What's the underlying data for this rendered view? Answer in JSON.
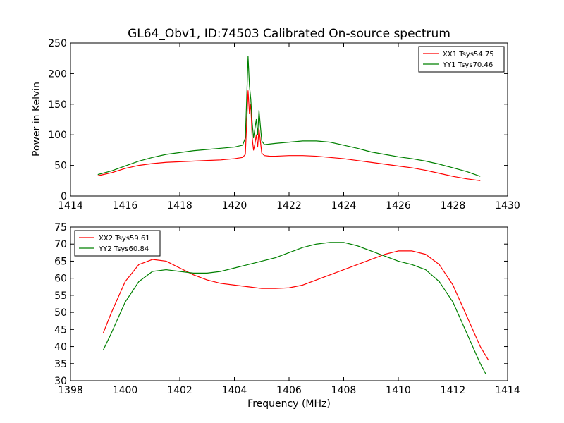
{
  "chart_data": [
    {
      "type": "line",
      "title": "GL64_Obv1, ID:74503 Calibrated On-source spectrum",
      "xlabel": "",
      "ylabel": "Power in Kelvin",
      "xlim": [
        1414,
        1430
      ],
      "ylim": [
        0,
        250
      ],
      "xticks": [
        "1414",
        "1416",
        "1418",
        "1420",
        "1422",
        "1424",
        "1426",
        "1428",
        "1430"
      ],
      "yticks": [
        "0",
        "50",
        "100",
        "150",
        "200",
        "250"
      ],
      "legend_position": "top-right",
      "grid": false,
      "series": [
        {
          "name": "XX1 Tsys54.75",
          "color": "#ff0000",
          "x": [
            1415,
            1415.5,
            1416,
            1416.5,
            1417,
            1417.5,
            1418,
            1418.5,
            1419,
            1419.5,
            1420,
            1420.3,
            1420.4,
            1420.45,
            1420.5,
            1420.55,
            1420.6,
            1420.65,
            1420.7,
            1420.75,
            1420.8,
            1420.85,
            1420.9,
            1420.95,
            1421,
            1421.1,
            1421.3,
            1421.5,
            1422,
            1422.5,
            1423,
            1423.5,
            1424,
            1424.5,
            1425,
            1425.5,
            1426,
            1426.5,
            1427,
            1427.5,
            1428,
            1428.5,
            1429
          ],
          "y": [
            33,
            38,
            45,
            50,
            53,
            55,
            56,
            57,
            58,
            59,
            61,
            63,
            68,
            120,
            172,
            135,
            150,
            95,
            75,
            85,
            100,
            80,
            110,
            90,
            70,
            66,
            65,
            65,
            66,
            66,
            65,
            63,
            61,
            58,
            55,
            52,
            49,
            46,
            42,
            37,
            32,
            28,
            25
          ]
        },
        {
          "name": "YY1 Tsys70.46",
          "color": "#008000",
          "x": [
            1415,
            1415.5,
            1416,
            1416.5,
            1417,
            1417.5,
            1418,
            1418.5,
            1419,
            1419.5,
            1420,
            1420.3,
            1420.4,
            1420.45,
            1420.5,
            1420.55,
            1420.6,
            1420.65,
            1420.7,
            1420.75,
            1420.8,
            1420.85,
            1420.9,
            1420.95,
            1421,
            1421.1,
            1421.3,
            1421.5,
            1422,
            1422.5,
            1423,
            1423.5,
            1424,
            1424.5,
            1425,
            1425.5,
            1426,
            1426.5,
            1427,
            1427.5,
            1428,
            1428.5,
            1429
          ],
          "y": [
            35,
            41,
            49,
            57,
            63,
            68,
            71,
            74,
            76,
            78,
            80,
            83,
            95,
            160,
            228,
            180,
            158,
            120,
            95,
            110,
            125,
            100,
            140,
            115,
            90,
            84,
            85,
            86,
            88,
            90,
            90,
            88,
            83,
            78,
            72,
            68,
            64,
            61,
            57,
            52,
            46,
            40,
            32
          ]
        }
      ]
    },
    {
      "type": "line",
      "title": "",
      "xlabel": "Frequency (MHz)",
      "ylabel": "",
      "xlim": [
        1398,
        1414
      ],
      "ylim": [
        30,
        75
      ],
      "xticks": [
        "1398",
        "1400",
        "1402",
        "1404",
        "1406",
        "1408",
        "1410",
        "1412",
        "1414"
      ],
      "yticks": [
        "30",
        "35",
        "40",
        "45",
        "50",
        "55",
        "60",
        "65",
        "70",
        "75"
      ],
      "legend_position": "top-left",
      "grid": false,
      "series": [
        {
          "name": "XX2 Tsys59.61",
          "color": "#ff0000",
          "x": [
            1399.2,
            1399.5,
            1400,
            1400.5,
            1401,
            1401.5,
            1402,
            1402.5,
            1403,
            1403.5,
            1404,
            1404.5,
            1405,
            1405.5,
            1406,
            1406.5,
            1407,
            1407.5,
            1408,
            1408.5,
            1409,
            1409.5,
            1410,
            1410.5,
            1411,
            1411.5,
            1412,
            1412.5,
            1413,
            1413.3
          ],
          "y": [
            44,
            50,
            59,
            64,
            65.5,
            65,
            63,
            61,
            59.5,
            58.5,
            58,
            57.5,
            57,
            57,
            57.2,
            58,
            59.5,
            61,
            62.5,
            64,
            65.5,
            67,
            68,
            68,
            67,
            64,
            58,
            49,
            40,
            36
          ]
        },
        {
          "name": "YY2 Tsys60.84",
          "color": "#008000",
          "x": [
            1399.2,
            1399.5,
            1400,
            1400.5,
            1401,
            1401.5,
            1402,
            1402.5,
            1403,
            1403.5,
            1404,
            1404.5,
            1405,
            1405.5,
            1406,
            1406.5,
            1407,
            1407.5,
            1408,
            1408.5,
            1409,
            1409.5,
            1410,
            1410.5,
            1411,
            1411.5,
            1412,
            1412.5,
            1413,
            1413.2
          ],
          "y": [
            39,
            44,
            53,
            59,
            62,
            62.5,
            62,
            61.5,
            61.5,
            62,
            63,
            64,
            65,
            66,
            67.5,
            69,
            70,
            70.5,
            70.5,
            69.5,
            68,
            66.5,
            65,
            64,
            62.5,
            59,
            53,
            44,
            35,
            32
          ]
        }
      ]
    }
  ]
}
